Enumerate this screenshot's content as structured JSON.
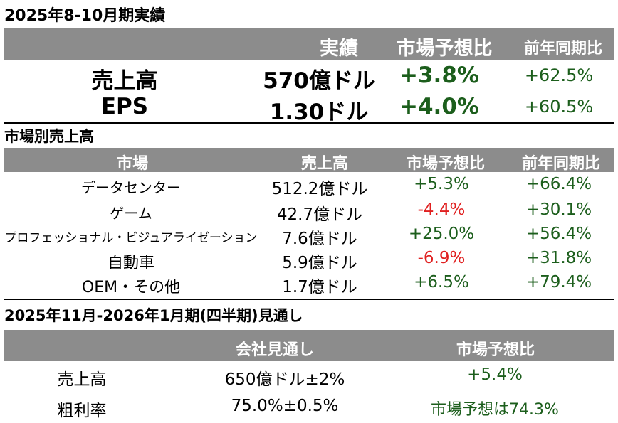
{
  "section1": {
    "title": "2025年8-10月期実績",
    "headers": [
      "実績",
      "市場予想比",
      "前年同期比"
    ],
    "rows": [
      {
        "label": "売上高",
        "actual": "570億ドル",
        "vs_consensus": "+3.8%",
        "yoy": "+62.5%"
      },
      {
        "label": "EPS",
        "actual": "1.30ドル",
        "vs_consensus": "+4.0%",
        "yoy": "+60.5%"
      }
    ]
  },
  "section2": {
    "title": "市場別売上高",
    "headers": [
      "市場",
      "売上高",
      "市場予想比",
      "前年同期比"
    ],
    "rows": [
      {
        "market": "データセンター",
        "revenue": "512.2億ドル",
        "vs_consensus": "+5.3%",
        "yoy": "+66.4%",
        "negative": false
      },
      {
        "market": "ゲーム",
        "revenue": "42.7億ドル",
        "vs_consensus": "-4.4%",
        "yoy": "+30.1%",
        "negative": true
      },
      {
        "market": "プロフェッショナル・ビジュアライゼーション",
        "revenue": "7.6億ドル",
        "vs_consensus": "+25.0%",
        "yoy": "+56.4%",
        "negative": false
      },
      {
        "market": "自動車",
        "revenue": "5.9億ドル",
        "vs_consensus": "-6.9%",
        "yoy": "+31.8%",
        "negative": true
      },
      {
        "market": "OEM・その他",
        "revenue": "1.7億ドル",
        "vs_consensus": "+6.5%",
        "yoy": "+79.4%",
        "negative": false
      }
    ]
  },
  "section3": {
    "title": "2025年11月-2026年1月期(四半期)見通し",
    "headers": [
      "会社見通し",
      "市場予想比"
    ],
    "rows": [
      {
        "label": "売上高",
        "guidance": "650億ドル±2%",
        "vs_consensus": "+5.4%"
      },
      {
        "label": "粗利率",
        "guidance": "75.0%±0.5%",
        "vs_consensus": "市場予想は74.3%"
      }
    ]
  },
  "colors": {
    "header_bg": "#8c8c8c",
    "header_text": "#ffffff",
    "positive": "#1c5e1c",
    "negative": "#e02020"
  }
}
